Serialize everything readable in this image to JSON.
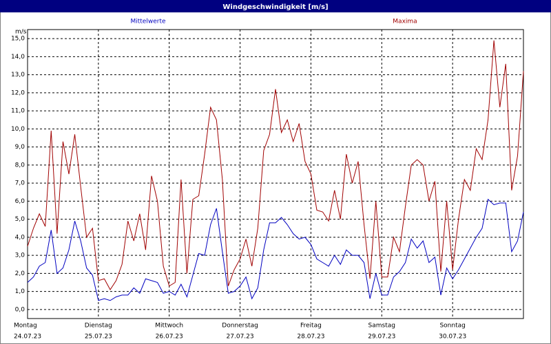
{
  "chart_data": {
    "type": "line",
    "title": "Windgeschwindigkeit [m/s]",
    "y_unit": "m/s",
    "x": [
      0,
      2,
      4,
      6,
      8,
      10,
      12,
      14,
      16,
      18,
      20,
      22,
      24,
      26,
      28,
      30,
      32,
      34,
      36,
      38,
      40,
      42,
      44,
      46,
      48,
      50,
      52,
      54,
      56,
      58,
      60,
      62,
      64,
      66,
      68,
      70,
      72,
      74,
      76,
      78,
      80,
      82,
      84,
      86,
      88,
      90,
      92,
      94,
      96,
      98,
      100,
      102,
      104,
      106,
      108,
      110,
      112,
      114,
      116,
      118,
      120,
      122,
      124,
      126,
      128,
      130,
      132,
      134,
      136,
      138,
      140,
      142,
      144,
      146,
      148,
      150,
      152,
      154,
      156,
      158,
      160,
      162,
      164,
      166,
      168
    ],
    "series": [
      {
        "name": "Mittelwerte",
        "color": "#0000c0",
        "values": [
          1.5,
          1.8,
          2.4,
          2.6,
          4.4,
          2.0,
          2.3,
          3.3,
          4.9,
          3.8,
          2.3,
          1.9,
          0.5,
          0.6,
          0.5,
          0.7,
          0.8,
          0.8,
          1.2,
          0.9,
          1.7,
          1.6,
          1.5,
          0.9,
          1.0,
          0.8,
          1.4,
          0.7,
          1.9,
          3.1,
          3.0,
          4.7,
          5.6,
          3.2,
          0.9,
          1.0,
          1.3,
          1.8,
          0.6,
          1.2,
          3.3,
          4.8,
          4.8,
          5.1,
          4.7,
          4.2,
          3.9,
          4.0,
          3.6,
          2.8,
          2.6,
          2.4,
          3.0,
          2.5,
          3.3,
          3.0,
          3.0,
          2.6,
          0.6,
          2.0,
          0.8,
          0.8,
          1.8,
          2.1,
          2.6,
          3.9,
          3.4,
          3.8,
          2.6,
          2.9,
          0.8,
          2.3,
          1.7,
          2.2,
          2.8,
          3.4,
          4.0,
          4.5,
          6.1,
          5.8,
          5.9,
          5.9,
          3.2,
          3.8,
          5.4
        ]
      },
      {
        "name": "Maxima",
        "color": "#a00000",
        "values": [
          3.5,
          4.5,
          5.3,
          4.6,
          9.9,
          4.2,
          9.3,
          7.5,
          9.7,
          6.8,
          4.0,
          4.5,
          1.6,
          1.7,
          1.1,
          1.6,
          2.5,
          4.9,
          3.8,
          5.3,
          3.3,
          7.4,
          6.0,
          2.4,
          1.3,
          1.5,
          7.2,
          2.0,
          6.1,
          6.3,
          8.6,
          11.2,
          10.5,
          7.2,
          1.3,
          2.2,
          2.8,
          3.9,
          2.4,
          4.5,
          8.8,
          9.7,
          12.2,
          9.8,
          10.5,
          9.3,
          10.3,
          8.2,
          7.5,
          5.5,
          5.4,
          4.9,
          6.6,
          5.0,
          8.6,
          7.0,
          8.2,
          4.7,
          1.7,
          6.0,
          1.8,
          1.8,
          4.0,
          3.2,
          5.7,
          8.0,
          8.3,
          8.0,
          6.0,
          7.1,
          2.1,
          6.0,
          2.2,
          5.0,
          7.2,
          6.6,
          8.9,
          8.3,
          10.5,
          14.9,
          11.2,
          13.6,
          6.6,
          8.5,
          13.2
        ]
      }
    ],
    "xlim": [
      0,
      168
    ],
    "xticks": [
      {
        "value": 0,
        "label": "Montag",
        "date": "24.07.23"
      },
      {
        "value": 24,
        "label": "Dienstag",
        "date": "25.07.23"
      },
      {
        "value": 48,
        "label": "Mittwoch",
        "date": "26.07.23"
      },
      {
        "value": 72,
        "label": "Donnerstag",
        "date": "27.07.23"
      },
      {
        "value": 96,
        "label": "Freitag",
        "date": "28.07.23"
      },
      {
        "value": 120,
        "label": "Samstag",
        "date": "29.07.23"
      },
      {
        "value": 144,
        "label": "Sonntag",
        "date": "30.07.23"
      }
    ],
    "ylim": [
      -0.5,
      15.5
    ],
    "yticks": [
      {
        "value": 0,
        "label": "0,0"
      },
      {
        "value": 1,
        "label": "1,0"
      },
      {
        "value": 2,
        "label": "2,0"
      },
      {
        "value": 3,
        "label": "3,0"
      },
      {
        "value": 4,
        "label": "4,0"
      },
      {
        "value": 5,
        "label": "5,0"
      },
      {
        "value": 6,
        "label": "6,0"
      },
      {
        "value": 7,
        "label": "7,0"
      },
      {
        "value": 8,
        "label": "8,0"
      },
      {
        "value": 9,
        "label": "9,0"
      },
      {
        "value": 10,
        "label": "10,0"
      },
      {
        "value": 11,
        "label": "11,0"
      },
      {
        "value": 12,
        "label": "12,0"
      },
      {
        "value": 13,
        "label": "13,0"
      },
      {
        "value": 14,
        "label": "14,0"
      },
      {
        "value": 15,
        "label": "15,0"
      }
    ],
    "grid": true
  }
}
